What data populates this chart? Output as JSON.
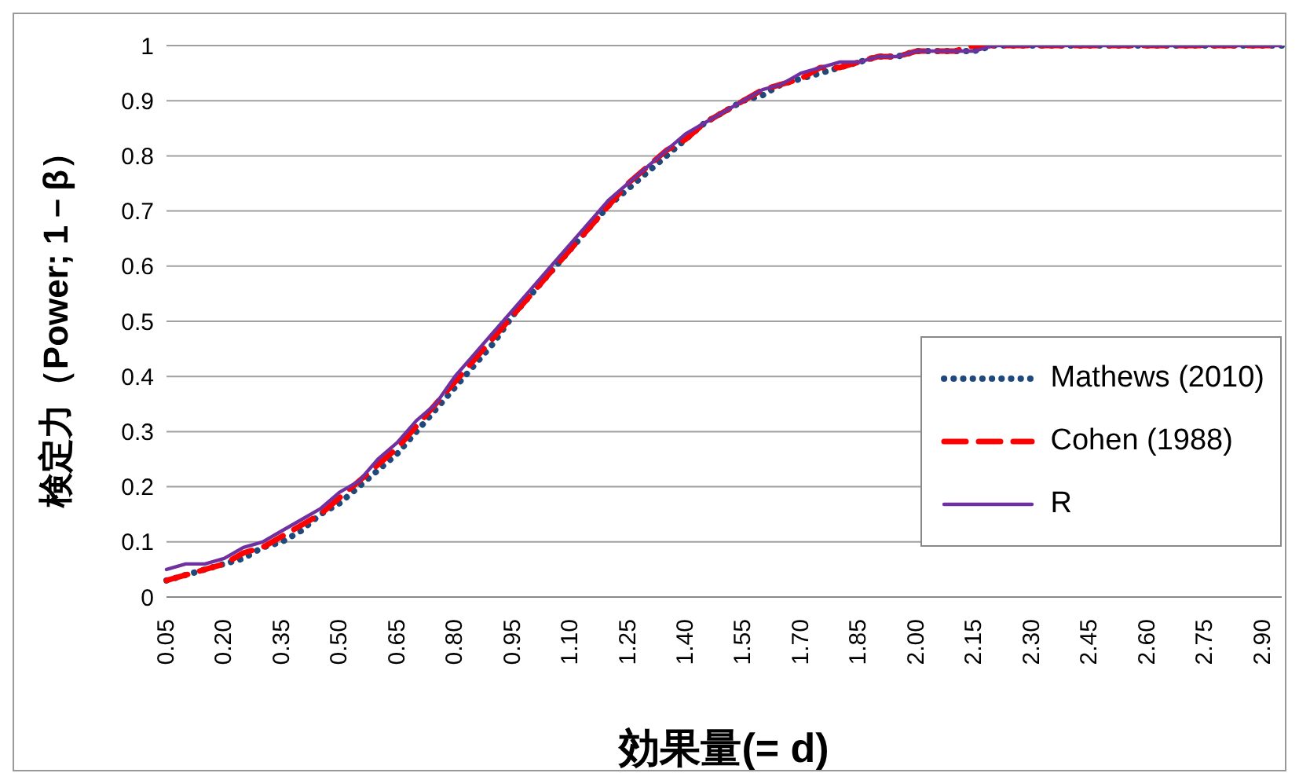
{
  "chart_data": {
    "type": "line",
    "xlabel": "効果量(= d)",
    "ylabel": "検定力（Power; 1－β）",
    "categories": [
      "0.05",
      null,
      null,
      "0.20",
      null,
      null,
      "0.35",
      null,
      null,
      "0.50",
      null,
      null,
      "0.65",
      null,
      null,
      "0.80",
      null,
      null,
      "0.95",
      null,
      null,
      "1.10",
      null,
      null,
      "1.25",
      null,
      null,
      "1.40",
      null,
      null,
      "1.55",
      null,
      null,
      "1.70",
      null,
      null,
      "1.85",
      null,
      null,
      "2.00",
      null,
      null,
      "2.15",
      null,
      null,
      "2.30",
      null,
      null,
      "2.45",
      null,
      null,
      "2.60",
      null,
      null,
      "2.75",
      null,
      null,
      "2.90",
      null
    ],
    "series": [
      {
        "name": "Mathews (2010)",
        "color": "#1f497d",
        "line_style": "dotted",
        "values": [
          0.03,
          0.04,
          0.05,
          0.06,
          0.07,
          0.09,
          0.1,
          0.12,
          0.15,
          0.17,
          0.2,
          0.23,
          0.26,
          0.3,
          0.34,
          0.38,
          0.42,
          0.46,
          0.51,
          0.55,
          0.59,
          0.63,
          0.67,
          0.71,
          0.74,
          0.77,
          0.8,
          0.83,
          0.86,
          0.88,
          0.9,
          0.91,
          0.93,
          0.94,
          0.95,
          0.96,
          0.97,
          0.98,
          0.98,
          0.99,
          0.99,
          0.99,
          0.99,
          1,
          1,
          1,
          1,
          1,
          1,
          1,
          1,
          1,
          1,
          1,
          1,
          1,
          1,
          1,
          1
        ]
      },
      {
        "name": "Cohen (1988)",
        "color": "#ff0000",
        "line_style": "dashed",
        "values": [
          0.03,
          0.04,
          0.05,
          0.06,
          0.08,
          0.09,
          0.11,
          0.13,
          0.15,
          0.18,
          0.21,
          0.24,
          0.27,
          0.31,
          0.35,
          0.39,
          0.43,
          0.47,
          0.51,
          0.55,
          0.59,
          0.63,
          0.67,
          0.71,
          0.75,
          0.78,
          0.81,
          0.83,
          0.86,
          0.88,
          0.9,
          0.92,
          0.93,
          0.94,
          0.96,
          0.96,
          0.97,
          0.98,
          0.98,
          0.99,
          0.99,
          0.99,
          1,
          1,
          1,
          1,
          1,
          1,
          1,
          1,
          1,
          1,
          1,
          1,
          1,
          1,
          1,
          1,
          1
        ]
      },
      {
        "name": "R",
        "color": "#7030a0",
        "line_style": "solid",
        "values": [
          0.05,
          0.06,
          0.06,
          0.07,
          0.09,
          0.1,
          0.12,
          0.14,
          0.16,
          0.19,
          0.21,
          0.25,
          0.28,
          0.32,
          0.35,
          0.4,
          0.44,
          0.48,
          0.52,
          0.56,
          0.6,
          0.64,
          0.68,
          0.72,
          0.75,
          0.78,
          0.81,
          0.84,
          0.86,
          0.88,
          0.9,
          0.92,
          0.93,
          0.95,
          0.96,
          0.97,
          0.97,
          0.98,
          0.98,
          0.99,
          0.99,
          0.99,
          0.99,
          1,
          1,
          1,
          1,
          1,
          1,
          1,
          1,
          1,
          1,
          1,
          1,
          1,
          1,
          1,
          1
        ]
      }
    ],
    "ylim": [
      0,
      1
    ],
    "yticks": [
      0,
      0.1,
      0.2,
      0.3,
      0.4,
      0.5,
      0.6,
      0.7,
      0.8,
      0.9,
      1
    ],
    "grid": "y",
    "legend": "right"
  }
}
